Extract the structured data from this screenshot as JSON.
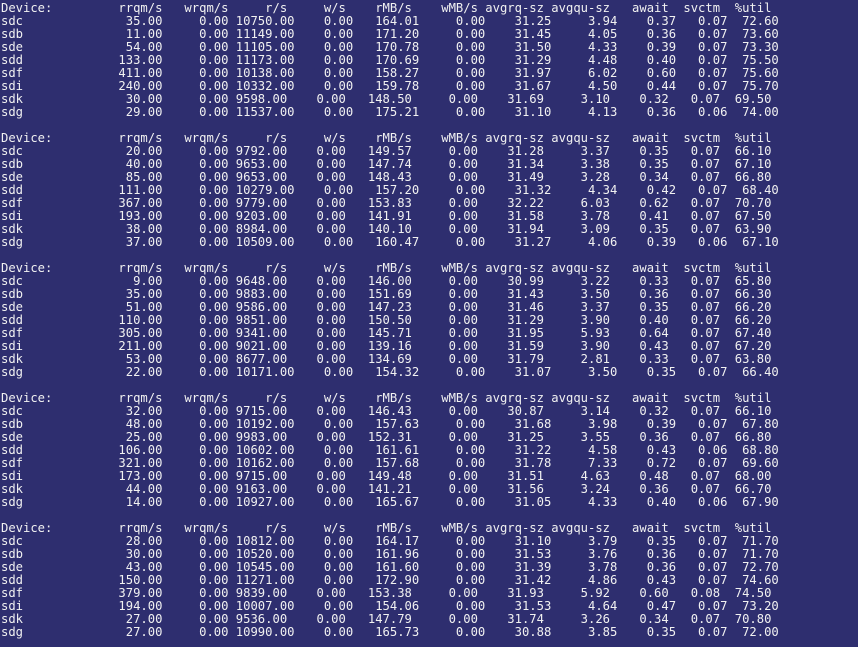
{
  "colors": {
    "background": "#2e2e6f",
    "foreground": "#f1f1f1"
  },
  "terminal_lines": [
    "Device:         rrqm/s   wrqm/s     r/s     w/s    rMB/s    wMB/s avgrq-sz avgqu-sz   await  svctm  %util",
    "sdc              35.00     0.00 10750.00    0.00   164.01     0.00    31.25     3.94    0.37   0.07  72.60",
    "sdb              11.00     0.00 11149.00    0.00   171.20     0.00    31.45     4.05    0.36   0.07  73.60",
    "sde              54.00     0.00 11105.00    0.00   170.78     0.00    31.50     4.33    0.39   0.07  73.30",
    "sdd             133.00     0.00 11173.00    0.00   170.69     0.00    31.29     4.48    0.40   0.07  75.50",
    "sdf             411.00     0.00 10138.00    0.00   158.27     0.00    31.97     6.02    0.60   0.07  75.60",
    "sdi             240.00     0.00 10332.00    0.00   159.78     0.00    31.67     4.50    0.44   0.07  75.70",
    "sdk              30.00     0.00 9598.00    0.00   148.50     0.00    31.69     3.10    0.32   0.07  69.50",
    "sdg              29.00     0.00 11537.00    0.00   175.21     0.00    31.10     4.13    0.36   0.06  74.00",
    "",
    "Device:         rrqm/s   wrqm/s     r/s     w/s    rMB/s    wMB/s avgrq-sz avgqu-sz   await  svctm  %util",
    "sdc              20.00     0.00 9792.00    0.00   149.57     0.00    31.28     3.37    0.35   0.07  66.10",
    "sdb              40.00     0.00 9653.00    0.00   147.74     0.00    31.34     3.38    0.35   0.07  67.10",
    "sde              85.00     0.00 9653.00    0.00   148.43     0.00    31.49     3.28    0.34   0.07  66.80",
    "sdd             111.00     0.00 10279.00    0.00   157.20     0.00    31.32     4.34    0.42   0.07  68.40",
    "sdf             367.00     0.00 9779.00    0.00   153.83     0.00    32.22     6.03    0.62   0.07  70.70",
    "sdi             193.00     0.00 9203.00    0.00   141.91     0.00    31.58     3.78    0.41   0.07  67.50",
    "sdk              38.00     0.00 8984.00    0.00   140.10     0.00    31.94     3.09    0.35   0.07  63.90",
    "sdg              37.00     0.00 10509.00    0.00   160.47     0.00    31.27     4.06    0.39   0.06  67.10",
    "",
    "Device:         rrqm/s   wrqm/s     r/s     w/s    rMB/s    wMB/s avgrq-sz avgqu-sz   await  svctm  %util",
    "sdc               9.00     0.00 9648.00    0.00   146.00     0.00    30.99     3.22    0.33   0.07  65.80",
    "sdb              35.00     0.00 9883.00    0.00   151.69     0.00    31.43     3.50    0.36   0.07  66.30",
    "sde              51.00     0.00 9586.00    0.00   147.23     0.00    31.46     3.37    0.35   0.07  66.20",
    "sdd             110.00     0.00 9851.00    0.00   150.50     0.00    31.29     3.90    0.40   0.07  66.20",
    "sdf             305.00     0.00 9341.00    0.00   145.71     0.00    31.95     5.93    0.64   0.07  67.40",
    "sdi             211.00     0.00 9021.00    0.00   139.16     0.00    31.59     3.90    0.43   0.07  67.20",
    "sdk              53.00     0.00 8677.00    0.00   134.69     0.00    31.79     2.81    0.33   0.07  63.80",
    "sdg              22.00     0.00 10171.00    0.00   154.32     0.00    31.07     3.50    0.35   0.07  66.40",
    "",
    "Device:         rrqm/s   wrqm/s     r/s     w/s    rMB/s    wMB/s avgrq-sz avgqu-sz   await  svctm  %util",
    "sdc              32.00     0.00 9715.00    0.00   146.43     0.00    30.87     3.14    0.32   0.07  66.10",
    "sdb              48.00     0.00 10192.00    0.00   157.63     0.00    31.68     3.98    0.39   0.07  67.80",
    "sde              25.00     0.00 9983.00    0.00   152.31     0.00    31.25     3.55    0.36   0.07  66.80",
    "sdd             106.00     0.00 10602.00    0.00   161.61     0.00    31.22     4.58    0.43   0.06  68.80",
    "sdf             321.00     0.00 10162.00    0.00   157.68     0.00    31.78     7.33    0.72   0.07  69.60",
    "sdi             173.00     0.00 9715.00    0.00   149.48     0.00    31.51     4.63    0.48   0.07  68.00",
    "sdk              44.00     0.00 9163.00    0.00   141.21     0.00    31.56     3.24    0.36   0.07  66.70",
    "sdg              14.00     0.00 10927.00    0.00   165.67     0.00    31.05     4.33    0.40   0.06  67.90",
    "",
    "Device:         rrqm/s   wrqm/s     r/s     w/s    rMB/s    wMB/s avgrq-sz avgqu-sz   await  svctm  %util",
    "sdc              28.00     0.00 10812.00    0.00   164.17     0.00    31.10     3.79    0.35   0.07  71.70",
    "sdb              30.00     0.00 10520.00    0.00   161.96     0.00    31.53     3.76    0.36   0.07  71.70",
    "sde              43.00     0.00 10545.00    0.00   161.60     0.00    31.39     3.78    0.36   0.07  72.70",
    "sdd             150.00     0.00 11271.00    0.00   172.90     0.00    31.42     4.86    0.43   0.07  74.60",
    "sdf             379.00     0.00 9839.00    0.00   153.38     0.00    31.93     5.92    0.60   0.08  74.50",
    "sdi             194.00     0.00 10007.00    0.00   154.06     0.00    31.53     4.64    0.47   0.07  73.20",
    "sdk              27.00     0.00 9536.00    0.00   147.79     0.00    31.74     3.26    0.34   0.07  70.80",
    "sdg              27.00     0.00 10990.00    0.00   165.73     0.00    30.88     3.85    0.35   0.07  72.00"
  ]
}
